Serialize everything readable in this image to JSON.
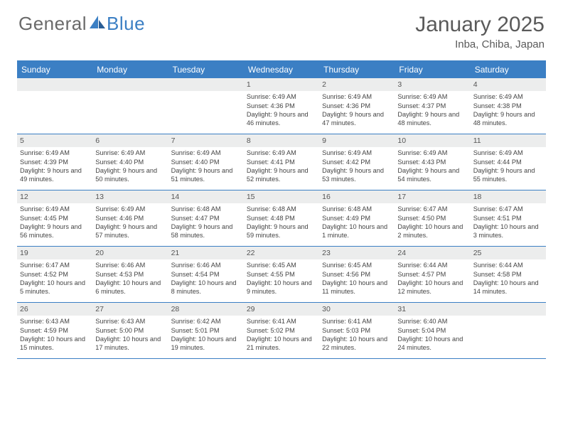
{
  "brand": {
    "text1": "General",
    "text2": "Blue"
  },
  "title": "January 2025",
  "location": "Inba, Chiba, Japan",
  "colors": {
    "accent": "#3b7fc4",
    "header_text": "#ffffff",
    "date_bg": "#eceded",
    "body_text": "#444444",
    "title_text": "#5a5a5a",
    "logo_gray": "#6a6a6a"
  },
  "day_names": [
    "Sunday",
    "Monday",
    "Tuesday",
    "Wednesday",
    "Thursday",
    "Friday",
    "Saturday"
  ],
  "labels": {
    "sunrise": "Sunrise:",
    "sunset": "Sunset:",
    "daylight": "Daylight:"
  },
  "weeks": [
    [
      null,
      null,
      null,
      {
        "d": "1",
        "sr": "6:49 AM",
        "ss": "4:36 PM",
        "dl": "9 hours and 46 minutes."
      },
      {
        "d": "2",
        "sr": "6:49 AM",
        "ss": "4:36 PM",
        "dl": "9 hours and 47 minutes."
      },
      {
        "d": "3",
        "sr": "6:49 AM",
        "ss": "4:37 PM",
        "dl": "9 hours and 48 minutes."
      },
      {
        "d": "4",
        "sr": "6:49 AM",
        "ss": "4:38 PM",
        "dl": "9 hours and 48 minutes."
      }
    ],
    [
      {
        "d": "5",
        "sr": "6:49 AM",
        "ss": "4:39 PM",
        "dl": "9 hours and 49 minutes."
      },
      {
        "d": "6",
        "sr": "6:49 AM",
        "ss": "4:40 PM",
        "dl": "9 hours and 50 minutes."
      },
      {
        "d": "7",
        "sr": "6:49 AM",
        "ss": "4:40 PM",
        "dl": "9 hours and 51 minutes."
      },
      {
        "d": "8",
        "sr": "6:49 AM",
        "ss": "4:41 PM",
        "dl": "9 hours and 52 minutes."
      },
      {
        "d": "9",
        "sr": "6:49 AM",
        "ss": "4:42 PM",
        "dl": "9 hours and 53 minutes."
      },
      {
        "d": "10",
        "sr": "6:49 AM",
        "ss": "4:43 PM",
        "dl": "9 hours and 54 minutes."
      },
      {
        "d": "11",
        "sr": "6:49 AM",
        "ss": "4:44 PM",
        "dl": "9 hours and 55 minutes."
      }
    ],
    [
      {
        "d": "12",
        "sr": "6:49 AM",
        "ss": "4:45 PM",
        "dl": "9 hours and 56 minutes."
      },
      {
        "d": "13",
        "sr": "6:49 AM",
        "ss": "4:46 PM",
        "dl": "9 hours and 57 minutes."
      },
      {
        "d": "14",
        "sr": "6:48 AM",
        "ss": "4:47 PM",
        "dl": "9 hours and 58 minutes."
      },
      {
        "d": "15",
        "sr": "6:48 AM",
        "ss": "4:48 PM",
        "dl": "9 hours and 59 minutes."
      },
      {
        "d": "16",
        "sr": "6:48 AM",
        "ss": "4:49 PM",
        "dl": "10 hours and 1 minute."
      },
      {
        "d": "17",
        "sr": "6:47 AM",
        "ss": "4:50 PM",
        "dl": "10 hours and 2 minutes."
      },
      {
        "d": "18",
        "sr": "6:47 AM",
        "ss": "4:51 PM",
        "dl": "10 hours and 3 minutes."
      }
    ],
    [
      {
        "d": "19",
        "sr": "6:47 AM",
        "ss": "4:52 PM",
        "dl": "10 hours and 5 minutes."
      },
      {
        "d": "20",
        "sr": "6:46 AM",
        "ss": "4:53 PM",
        "dl": "10 hours and 6 minutes."
      },
      {
        "d": "21",
        "sr": "6:46 AM",
        "ss": "4:54 PM",
        "dl": "10 hours and 8 minutes."
      },
      {
        "d": "22",
        "sr": "6:45 AM",
        "ss": "4:55 PM",
        "dl": "10 hours and 9 minutes."
      },
      {
        "d": "23",
        "sr": "6:45 AM",
        "ss": "4:56 PM",
        "dl": "10 hours and 11 minutes."
      },
      {
        "d": "24",
        "sr": "6:44 AM",
        "ss": "4:57 PM",
        "dl": "10 hours and 12 minutes."
      },
      {
        "d": "25",
        "sr": "6:44 AM",
        "ss": "4:58 PM",
        "dl": "10 hours and 14 minutes."
      }
    ],
    [
      {
        "d": "26",
        "sr": "6:43 AM",
        "ss": "4:59 PM",
        "dl": "10 hours and 15 minutes."
      },
      {
        "d": "27",
        "sr": "6:43 AM",
        "ss": "5:00 PM",
        "dl": "10 hours and 17 minutes."
      },
      {
        "d": "28",
        "sr": "6:42 AM",
        "ss": "5:01 PM",
        "dl": "10 hours and 19 minutes."
      },
      {
        "d": "29",
        "sr": "6:41 AM",
        "ss": "5:02 PM",
        "dl": "10 hours and 21 minutes."
      },
      {
        "d": "30",
        "sr": "6:41 AM",
        "ss": "5:03 PM",
        "dl": "10 hours and 22 minutes."
      },
      {
        "d": "31",
        "sr": "6:40 AM",
        "ss": "5:04 PM",
        "dl": "10 hours and 24 minutes."
      },
      null
    ]
  ]
}
